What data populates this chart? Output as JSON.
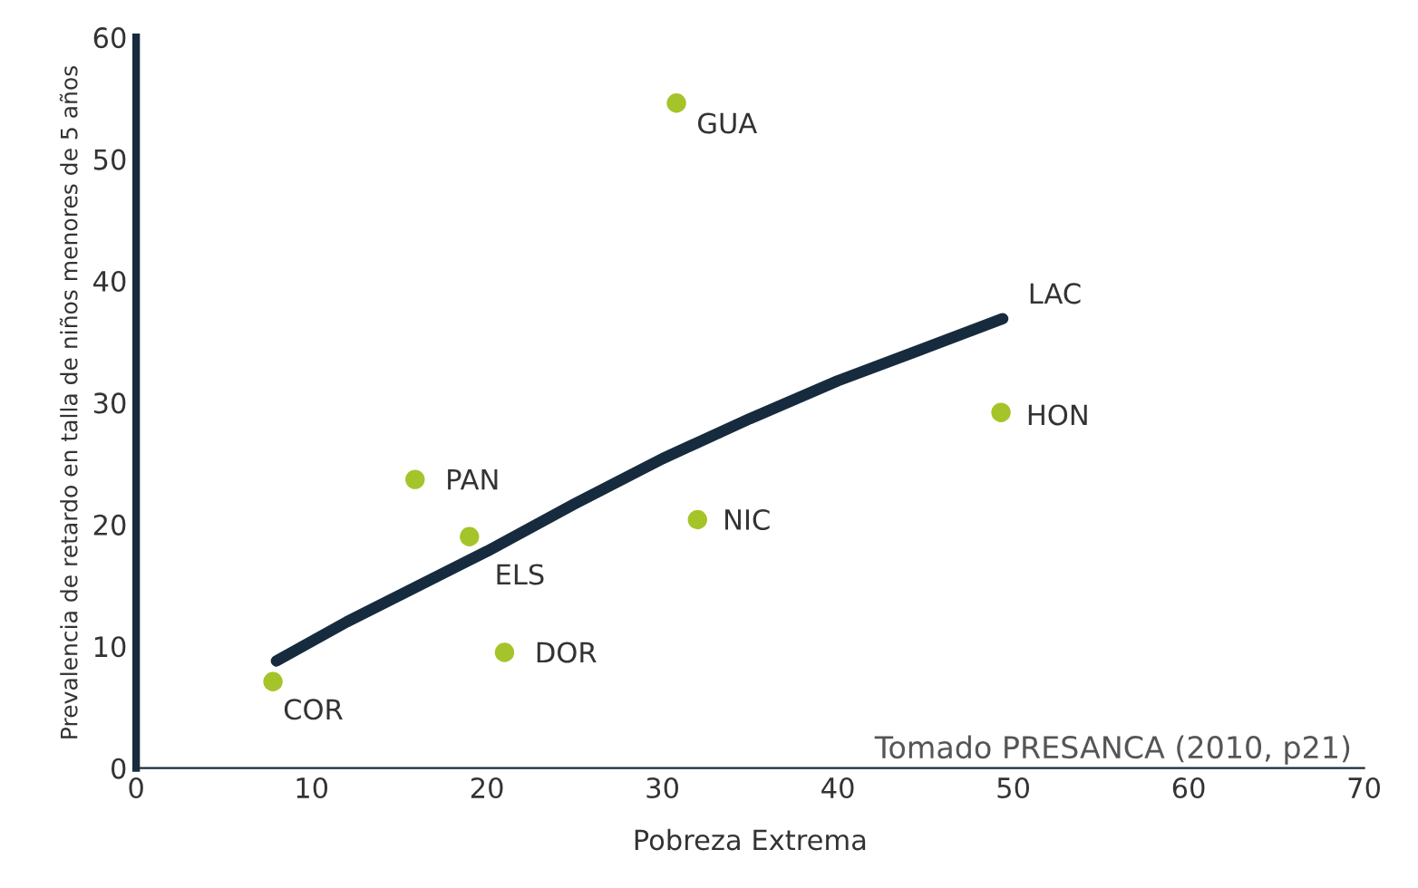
{
  "chart_data": {
    "type": "scatter",
    "xlabel": "Pobreza Extrema",
    "ylabel": "Prevalencia de retardo en talla de niños menores de 5 años",
    "xlim": [
      0,
      70
    ],
    "ylim": [
      0,
      60
    ],
    "xticks": [
      0,
      10,
      20,
      30,
      40,
      50,
      60,
      70
    ],
    "yticks": [
      0,
      10,
      20,
      30,
      40,
      50,
      60
    ],
    "grid": false,
    "legend": false,
    "marker": "circle",
    "series": [
      {
        "color": "#a5c42a",
        "x": [
          30.8,
          49.3,
          32.0,
          15.9,
          19.0,
          21.0,
          7.8
        ],
        "values": [
          54.6,
          29.2,
          20.4,
          23.7,
          19.0,
          9.5,
          7.1
        ]
      },
      {
        "type": "line",
        "name": "LAC",
        "color": "#172b3f",
        "marker": "none",
        "line_style": "solid",
        "x": [
          8,
          12,
          16,
          20,
          25,
          30,
          35,
          40,
          45,
          49.4
        ],
        "values": [
          8.8,
          12.0,
          14.9,
          17.8,
          21.7,
          25.4,
          28.7,
          31.8,
          34.5,
          36.9
        ]
      }
    ],
    "annotations": [
      {
        "text": "GUA",
        "x": 30.8,
        "y": 54.6
      },
      {
        "text": "HON",
        "x": 49.3,
        "y": 29.2
      },
      {
        "text": "NIC",
        "x": 32.0,
        "y": 20.4
      },
      {
        "text": "PAN",
        "x": 15.9,
        "y": 23.7
      },
      {
        "text": "ELS",
        "x": 19.0,
        "y": 19.0
      },
      {
        "text": "DOR",
        "x": 21.0,
        "y": 9.5
      },
      {
        "text": "COR",
        "x": 7.8,
        "y": 7.1
      },
      "Tomado PRESANCA (2010, p21)"
    ]
  }
}
